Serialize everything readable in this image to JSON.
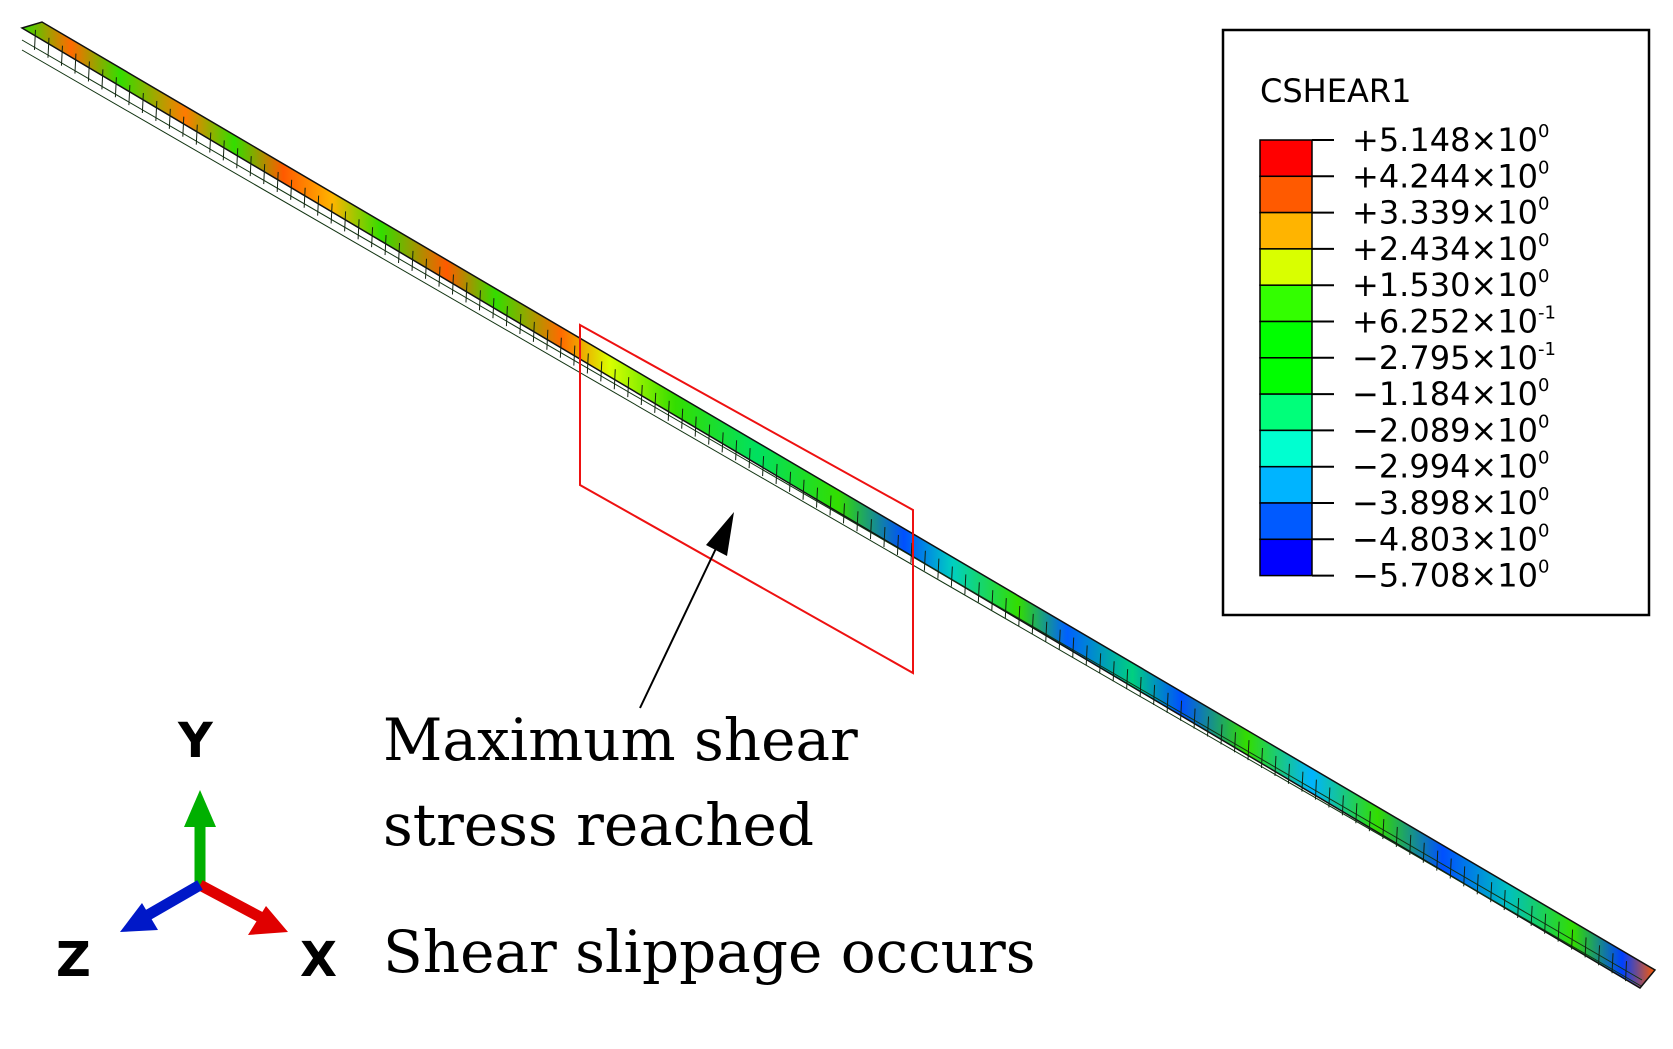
{
  "legend": {
    "title": "CSHEAR1",
    "entries": [
      {
        "sign": "+",
        "mantissa": "5.148",
        "exp": "0"
      },
      {
        "sign": "+",
        "mantissa": "4.244",
        "exp": "0"
      },
      {
        "sign": "+",
        "mantissa": "3.339",
        "exp": "0"
      },
      {
        "sign": "+",
        "mantissa": "2.434",
        "exp": "0"
      },
      {
        "sign": "+",
        "mantissa": "1.530",
        "exp": "0"
      },
      {
        "sign": "+",
        "mantissa": "6.252",
        "exp": "-1"
      },
      {
        "sign": "−",
        "mantissa": "2.795",
        "exp": "-1"
      },
      {
        "sign": "−",
        "mantissa": "1.184",
        "exp": "0"
      },
      {
        "sign": "−",
        "mantissa": "2.089",
        "exp": "0"
      },
      {
        "sign": "−",
        "mantissa": "2.994",
        "exp": "0"
      },
      {
        "sign": "−",
        "mantissa": "3.898",
        "exp": "0"
      },
      {
        "sign": "−",
        "mantissa": "4.803",
        "exp": "0"
      },
      {
        "sign": "−",
        "mantissa": "5.708",
        "exp": "0"
      }
    ],
    "colors": [
      "#ff0000",
      "#ff5a00",
      "#ffb400",
      "#d9ff00",
      "#33ff00",
      "#00ff00",
      "#00ff00",
      "#00ff7a",
      "#00ffd0",
      "#00b4ff",
      "#005aff",
      "#0000ff"
    ]
  },
  "annotations": {
    "max_shear_line1": "Maximum shear",
    "max_shear_line2": "stress reached",
    "slippage": "Shear slippage occurs"
  },
  "triad": {
    "x_label": "X",
    "y_label": "Y",
    "z_label": "Z",
    "x_color": "#e00000",
    "y_color": "#00b000",
    "z_color": "#0018c8"
  },
  "highlight_color": "#ee1111"
}
